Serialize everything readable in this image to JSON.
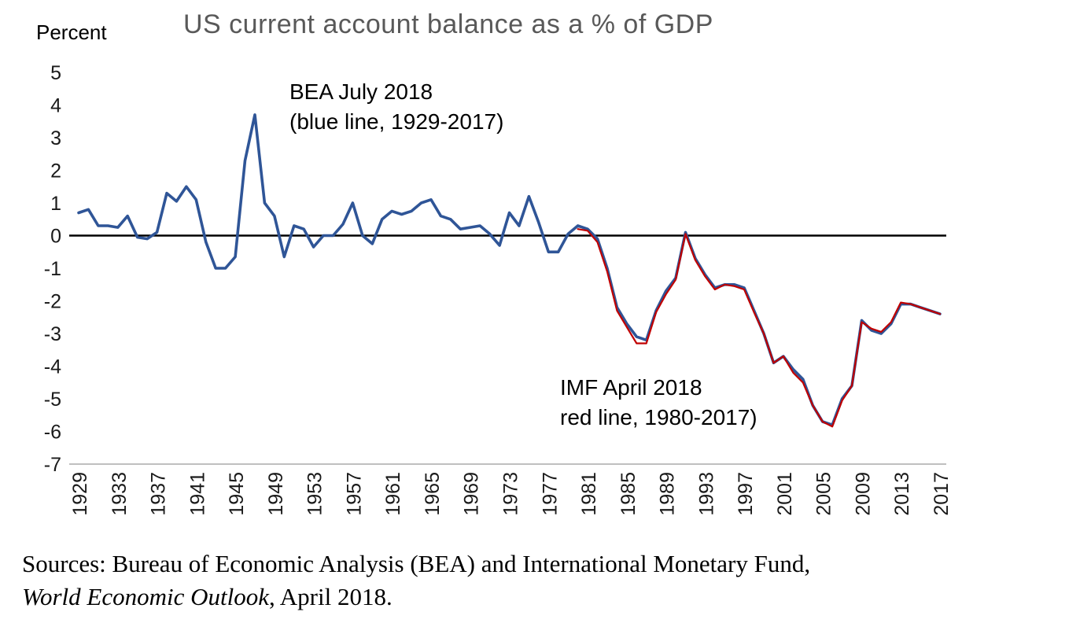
{
  "header": {
    "title": "US current account balance as a % of GDP",
    "y_axis_unit": "Percent"
  },
  "annotations": {
    "bea": {
      "line1": "BEA July 2018",
      "line2": "(blue line, 1929-2017)"
    },
    "imf": {
      "line1": "IMF April 2018",
      "line2": "red line, 1980-2017)"
    }
  },
  "source": {
    "line1": "Sources: Bureau of Economic Analysis (BEA) and International Monetary Fund,",
    "line2_italic": "World Economic Outlook",
    "line2_rest": ", April 2018."
  },
  "colors": {
    "bea_line": "#2F5597",
    "imf_line": "#C00000",
    "zero_line": "#000000",
    "baseline": "#BFBFBF",
    "title": "#595959"
  },
  "chart_data": {
    "type": "line",
    "title": "US current account balance as a % of GDP",
    "xlabel": "",
    "ylabel": "Percent",
    "ylim": [
      -7,
      5
    ],
    "yticks": [
      5,
      4,
      3,
      2,
      1,
      0,
      -1,
      -2,
      -3,
      -4,
      -5,
      -6,
      -7
    ],
    "x_range": [
      1929,
      2017
    ],
    "xticks": [
      1929,
      1933,
      1937,
      1941,
      1945,
      1949,
      1953,
      1957,
      1961,
      1965,
      1969,
      1973,
      1977,
      1981,
      1985,
      1989,
      1993,
      1997,
      2001,
      2005,
      2009,
      2013,
      2017
    ],
    "grid": false,
    "legend_position": "inline-annotations",
    "series": [
      {
        "name": "BEA July 2018 (blue line, 1929-2017)",
        "color": "#2F5597",
        "start_year": 1929,
        "values": [
          0.7,
          0.8,
          0.3,
          0.3,
          0.25,
          0.6,
          -0.05,
          -0.1,
          0.1,
          1.3,
          1.05,
          1.5,
          1.1,
          -0.2,
          -1.0,
          -1.0,
          -0.65,
          2.3,
          3.7,
          1.0,
          0.6,
          -0.65,
          0.3,
          0.2,
          -0.35,
          0.0,
          0.0,
          0.35,
          1.0,
          0.0,
          -0.25,
          0.5,
          0.75,
          0.65,
          0.75,
          1.0,
          1.1,
          0.6,
          0.5,
          0.2,
          0.25,
          0.3,
          0.05,
          -0.3,
          0.7,
          0.3,
          1.2,
          0.4,
          -0.5,
          -0.5,
          0.05,
          0.3,
          0.2,
          -0.1,
          -1.0,
          -2.2,
          -2.7,
          -3.1,
          -3.2,
          -2.3,
          -1.7,
          -1.3,
          0.1,
          -0.7,
          -1.2,
          -1.6,
          -1.5,
          -1.5,
          -1.6,
          -2.3,
          -3.0,
          -3.9,
          -3.7,
          -4.1,
          -4.4,
          -5.2,
          -5.7,
          -5.8,
          -5.0,
          -4.6,
          -2.6,
          -2.9,
          -3.0,
          -2.7,
          -2.1,
          -2.1,
          -2.2,
          -2.3,
          -2.4
        ]
      },
      {
        "name": "IMF April 2018 (red line, 1980-2017)",
        "color": "#C00000",
        "start_year": 1980,
        "values": [
          0.2,
          0.15,
          -0.2,
          -1.1,
          -2.3,
          -2.8,
          -3.3,
          -3.3,
          -2.35,
          -1.8,
          -1.35,
          0.05,
          -0.75,
          -1.25,
          -1.65,
          -1.5,
          -1.55,
          -1.65,
          -2.35,
          -3.0,
          -3.9,
          -3.7,
          -4.2,
          -4.5,
          -5.2,
          -5.7,
          -5.85,
          -5.05,
          -4.6,
          -2.65,
          -2.85,
          -2.95,
          -2.65,
          -2.05,
          -2.1,
          -2.2,
          -2.3,
          -2.4
        ]
      }
    ]
  }
}
